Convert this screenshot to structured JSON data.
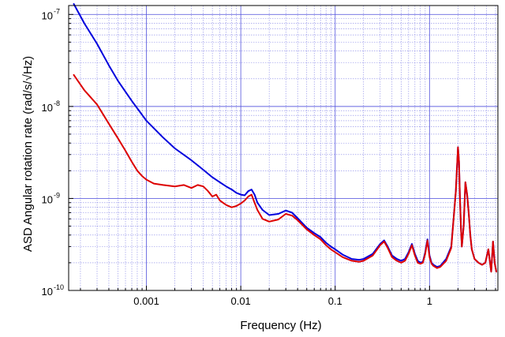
{
  "chart_data": {
    "type": "line",
    "title": "",
    "xlabel": "Frequency (Hz)",
    "ylabel": "ASD Angular rotation rate (rad/s/√Hz)",
    "xscale": "log",
    "yscale": "log",
    "xlim": [
      0.00015,
      5.3
    ],
    "ylim": [
      1e-10,
      1.25e-07
    ],
    "grid": true,
    "grid_color": "#5555dd",
    "legend": "none",
    "x_ticks": [
      {
        "value": 0.001,
        "label": "0.001"
      },
      {
        "value": 0.01,
        "label": "0.01"
      },
      {
        "value": 0.1,
        "label": "0.1"
      },
      {
        "value": 1,
        "label": "1"
      }
    ],
    "y_ticks": [
      {
        "value": 1e-10,
        "base": "10",
        "exp": "-10"
      },
      {
        "value": 1e-09,
        "base": "10",
        "exp": "-9"
      },
      {
        "value": 1e-08,
        "base": "10",
        "exp": "-8"
      },
      {
        "value": 1e-07,
        "base": "10",
        "exp": "-7"
      }
    ],
    "series": [
      {
        "color": "#0000dd",
        "x": [
          0.00017,
          0.00022,
          0.0003,
          0.0004,
          0.0005,
          0.0007,
          0.001,
          0.0015,
          0.002,
          0.003,
          0.004,
          0.005,
          0.006,
          0.007,
          0.008,
          0.009,
          0.01,
          0.011,
          0.012,
          0.013,
          0.014,
          0.015,
          0.017,
          0.02,
          0.025,
          0.03,
          0.035,
          0.04,
          0.05,
          0.06,
          0.07,
          0.08,
          0.09,
          0.1,
          0.12,
          0.15,
          0.18,
          0.2,
          0.25,
          0.3,
          0.33,
          0.36,
          0.4,
          0.45,
          0.5,
          0.55,
          0.6,
          0.65,
          0.7,
          0.75,
          0.8,
          0.85,
          0.9,
          0.95,
          1.0,
          1.05,
          1.1,
          1.2,
          1.3,
          1.5,
          1.7,
          1.9,
          2.0,
          2.05,
          2.1,
          2.15,
          2.2,
          2.3,
          2.4,
          2.5,
          2.6,
          2.7,
          2.8,
          3.0,
          3.3,
          3.6,
          3.9,
          4.2,
          4.5,
          4.7,
          4.9,
          5.1
        ],
        "y": [
          1.3e-07,
          8e-08,
          4.8e-08,
          2.8e-08,
          1.9e-08,
          1.15e-08,
          7e-09,
          4.6e-09,
          3.5e-09,
          2.6e-09,
          2.05e-09,
          1.7e-09,
          1.5e-09,
          1.35e-09,
          1.25e-09,
          1.15e-09,
          1.1e-09,
          1.08e-09,
          1.2e-09,
          1.25e-09,
          1.1e-09,
          9e-10,
          7.5e-10,
          6.6e-10,
          6.8e-10,
          7.4e-10,
          7e-10,
          6.1e-10,
          4.8e-10,
          4.2e-10,
          3.8e-10,
          3.3e-10,
          3e-10,
          2.8e-10,
          2.45e-10,
          2.2e-10,
          2.15e-10,
          2.2e-10,
          2.5e-10,
          3.2e-10,
          3.5e-10,
          3e-10,
          2.4e-10,
          2.2e-10,
          2.1e-10,
          2.2e-10,
          2.6e-10,
          3.2e-10,
          2.5e-10,
          2.1e-10,
          2e-10,
          2.05e-10,
          2.6e-10,
          3.6e-10,
          2.4e-10,
          2e-10,
          1.9e-10,
          1.8e-10,
          1.85e-10,
          2.2e-10,
          3e-10,
          1.2e-09,
          3.6e-09,
          2.5e-09,
          1e-09,
          5e-10,
          3e-10,
          5e-10,
          1.5e-09,
          1.1e-09,
          7e-10,
          4e-10,
          2.8e-10,
          2.2e-10,
          2e-10,
          1.9e-10,
          2e-10,
          2.8e-10,
          1.6e-10,
          3.4e-10,
          2e-10,
          1.6e-10
        ]
      },
      {
        "color": "#dd0000",
        "x": [
          0.00017,
          0.00022,
          0.0003,
          0.0004,
          0.0005,
          0.0006,
          0.0007,
          0.0008,
          0.0009,
          0.001,
          0.0012,
          0.0015,
          0.002,
          0.0025,
          0.003,
          0.0035,
          0.004,
          0.0045,
          0.005,
          0.0055,
          0.006,
          0.007,
          0.008,
          0.009,
          0.01,
          0.011,
          0.012,
          0.013,
          0.014,
          0.015,
          0.017,
          0.02,
          0.025,
          0.03,
          0.035,
          0.04,
          0.05,
          0.06,
          0.07,
          0.08,
          0.09,
          0.1,
          0.12,
          0.15,
          0.18,
          0.2,
          0.25,
          0.3,
          0.33,
          0.36,
          0.4,
          0.45,
          0.5,
          0.55,
          0.6,
          0.65,
          0.7,
          0.75,
          0.8,
          0.85,
          0.9,
          0.95,
          1.0,
          1.05,
          1.1,
          1.2,
          1.3,
          1.5,
          1.7,
          1.9,
          2.0,
          2.05,
          2.1,
          2.15,
          2.2,
          2.3,
          2.4,
          2.5,
          2.6,
          2.7,
          2.8,
          3.0,
          3.3,
          3.6,
          3.9,
          4.2,
          4.5,
          4.7,
          4.9,
          5.1
        ],
        "y": [
          2.2e-08,
          1.5e-08,
          1.05e-08,
          6.5e-09,
          4.5e-09,
          3.3e-09,
          2.5e-09,
          2e-09,
          1.75e-09,
          1.6e-09,
          1.45e-09,
          1.4e-09,
          1.35e-09,
          1.4e-09,
          1.3e-09,
          1.4e-09,
          1.35e-09,
          1.2e-09,
          1.05e-09,
          1.1e-09,
          9.5e-10,
          8.5e-10,
          8e-10,
          8.3e-10,
          8.8e-10,
          9.5e-10,
          1.05e-09,
          1.1e-09,
          9e-10,
          7.5e-10,
          6e-10,
          5.6e-10,
          5.9e-10,
          6.8e-10,
          6.5e-10,
          5.8e-10,
          4.6e-10,
          4e-10,
          3.6e-10,
          3.1e-10,
          2.8e-10,
          2.6e-10,
          2.3e-10,
          2.1e-10,
          2.05e-10,
          2.1e-10,
          2.4e-10,
          3.1e-10,
          3.4e-10,
          2.9e-10,
          2.3e-10,
          2.1e-10,
          2e-10,
          2.1e-10,
          2.5e-10,
          3.1e-10,
          2.4e-10,
          2e-10,
          1.95e-10,
          2e-10,
          2.5e-10,
          3.5e-10,
          2.3e-10,
          1.95e-10,
          1.85e-10,
          1.75e-10,
          1.8e-10,
          2.1e-10,
          2.9e-10,
          1.2e-09,
          3.6e-09,
          2.5e-09,
          1e-09,
          5e-10,
          3e-10,
          5e-10,
          1.5e-09,
          1.1e-09,
          7e-10,
          4e-10,
          2.8e-10,
          2.2e-10,
          2e-10,
          1.9e-10,
          2e-10,
          2.8e-10,
          1.6e-10,
          3.4e-10,
          2e-10,
          1.6e-10
        ]
      }
    ]
  }
}
